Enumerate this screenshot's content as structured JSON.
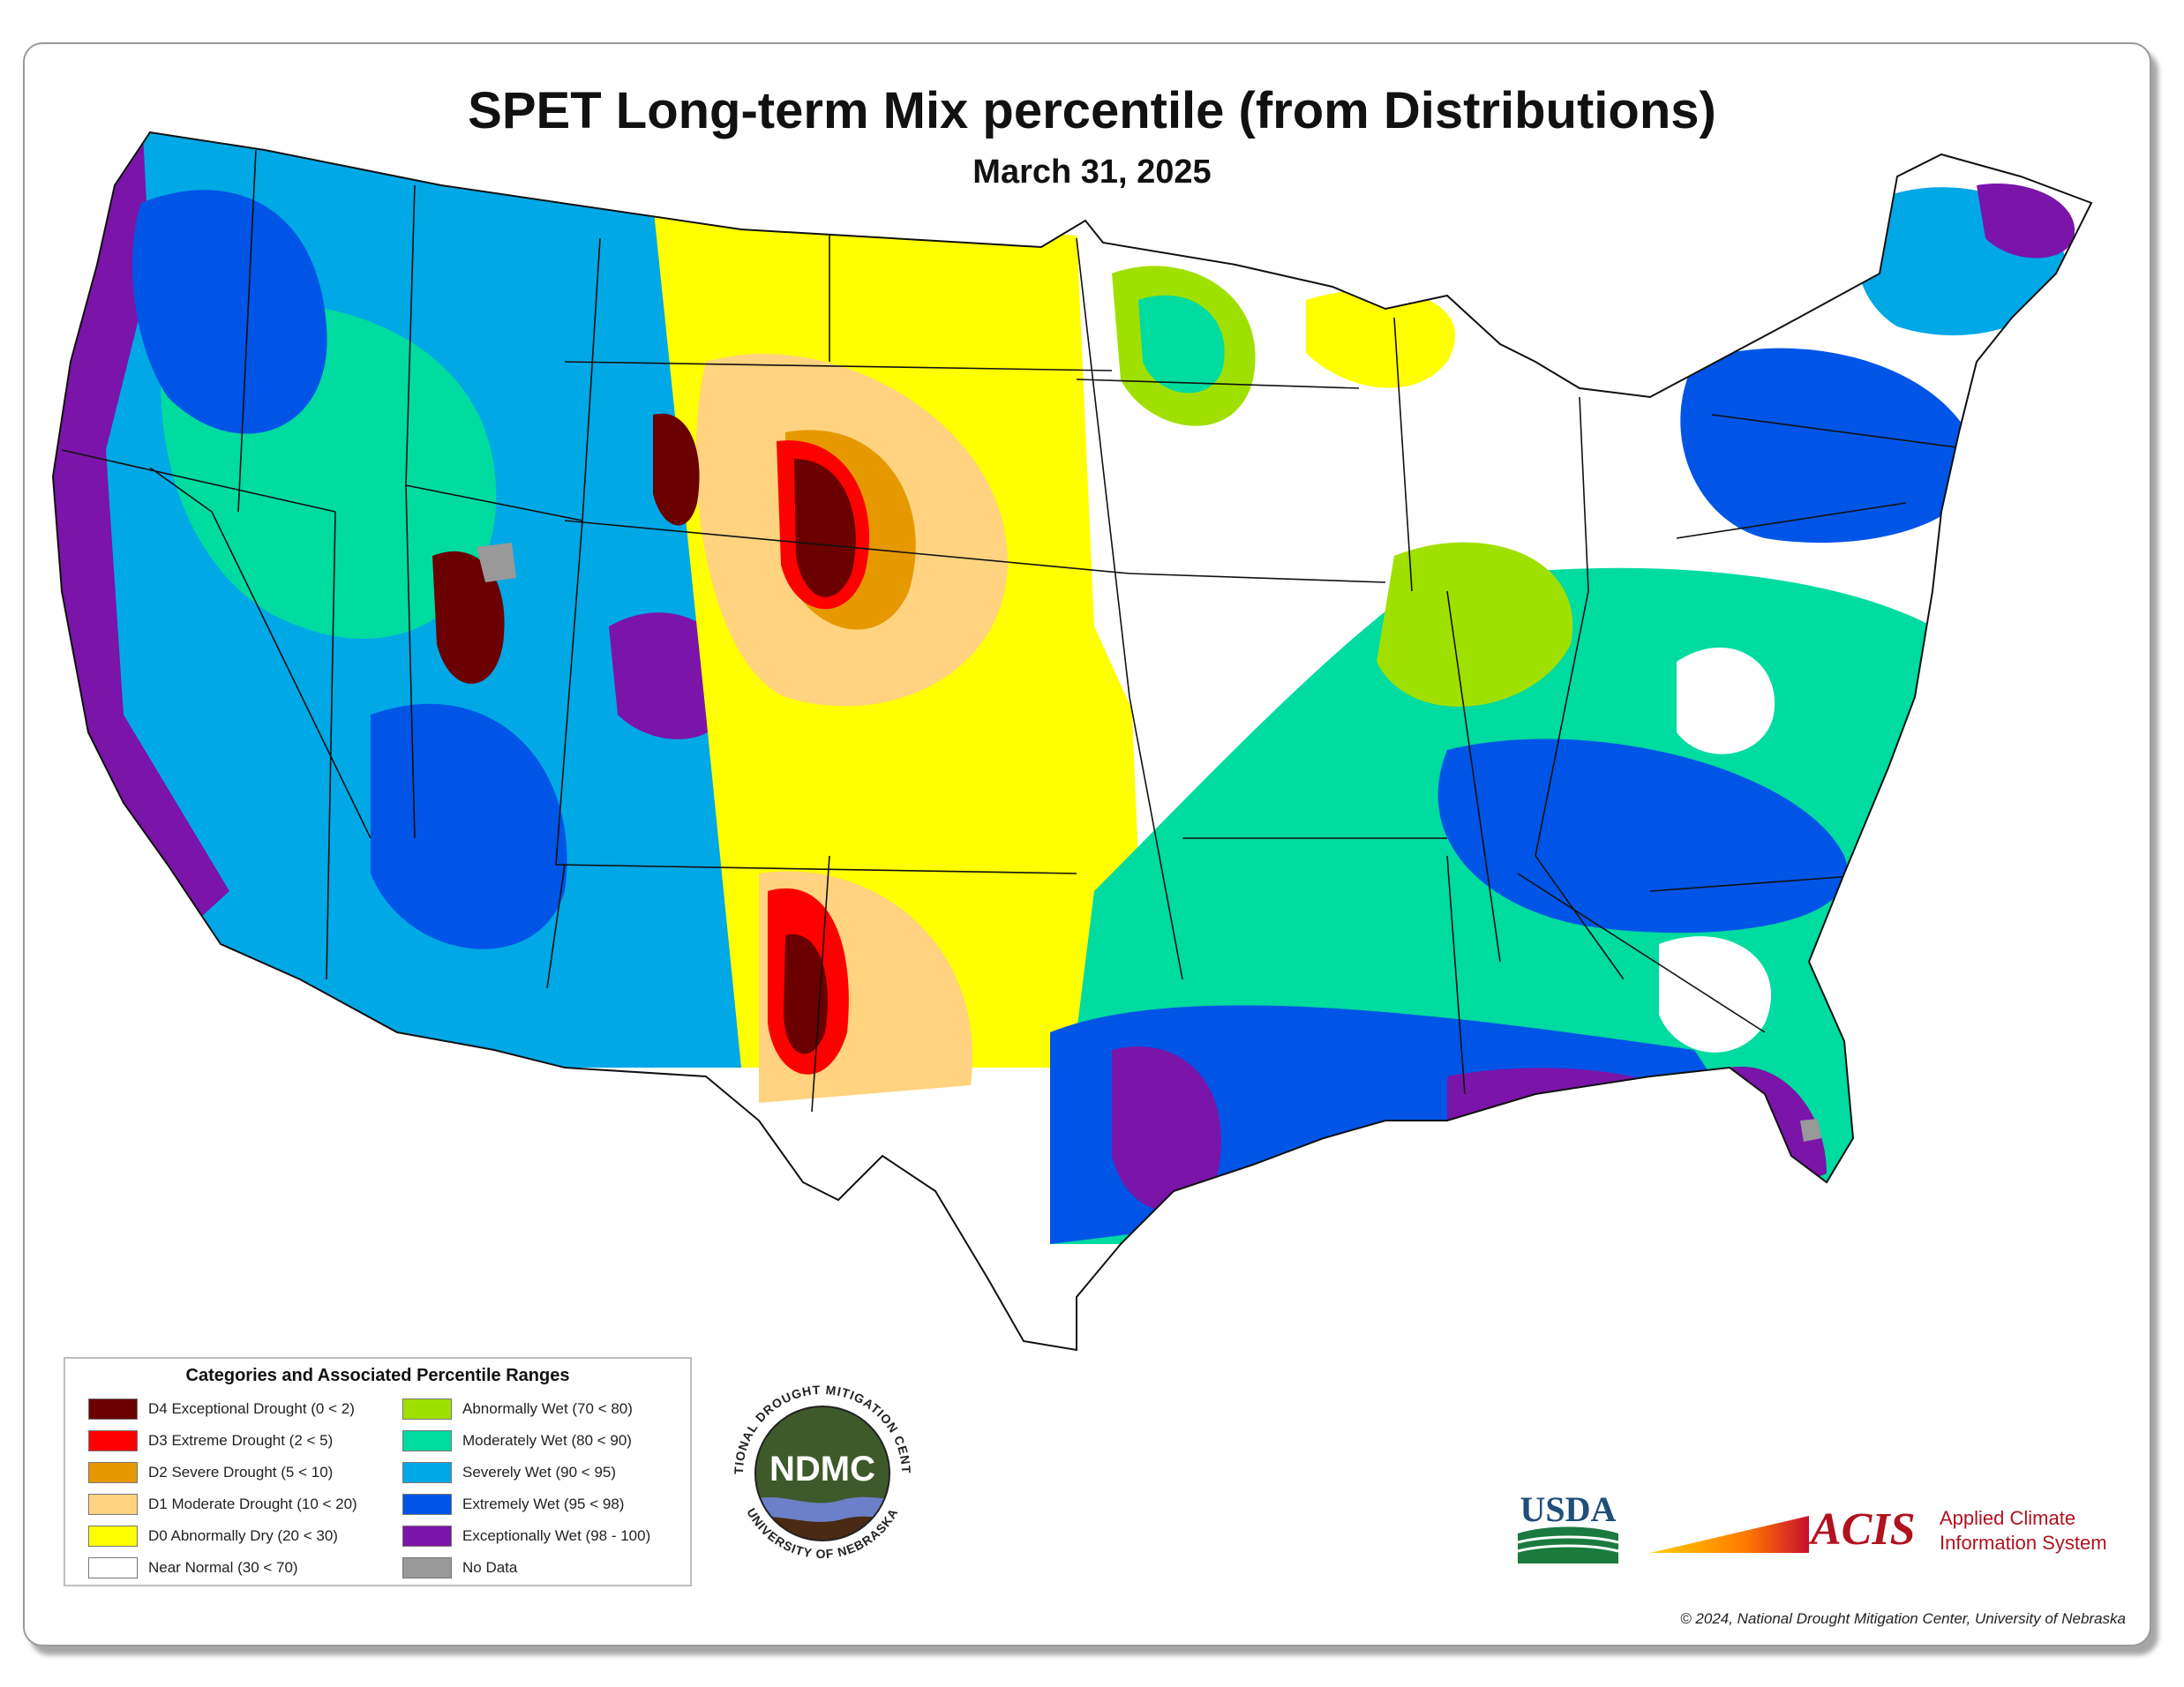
{
  "title": "SPET Long-term Mix percentile (from Distributions)",
  "subtitle": "March 31, 2025",
  "legend": {
    "title": "Categories and Associated Percentile Ranges",
    "left": [
      {
        "label": "D4 Exceptional Drought (0 < 2)",
        "color": "#6b0000"
      },
      {
        "label": "D3 Extreme Drought (2 < 5)",
        "color": "#ff0000"
      },
      {
        "label": "D2 Severe Drought (5 < 10)",
        "color": "#e69800"
      },
      {
        "label": "D1 Moderate Drought (10 < 20)",
        "color": "#ffd37f"
      },
      {
        "label": "D0 Abnormally Dry (20 < 30)",
        "color": "#ffff00"
      },
      {
        "label": "Near Normal (30 < 70)",
        "color": "#ffffff"
      }
    ],
    "right": [
      {
        "label": "Abnormally Wet (70 < 80)",
        "color": "#a0e000"
      },
      {
        "label": "Moderately Wet (80 < 90)",
        "color": "#00dba0"
      },
      {
        "label": "Severely Wet (90 < 95)",
        "color": "#00a8e6"
      },
      {
        "label": "Extremely Wet (95 < 98)",
        "color": "#0055e6"
      },
      {
        "label": "Exceptionally Wet (98 - 100)",
        "color": "#7b14a8"
      },
      {
        "label": "No Data",
        "color": "#999999"
      }
    ]
  },
  "ndmc": {
    "acronym": "NDMC",
    "ring_top": "NATIONAL DROUGHT MITIGATION CENTER",
    "ring_bottom": "UNIVERSITY OF NEBRASKA"
  },
  "usda": {
    "label": "USDA"
  },
  "acis": {
    "acronym": "ACIS",
    "line1": "Applied Climate",
    "line2": "Information System"
  },
  "copyright": "© 2024, National Drought Mitigation Center, University of Nebraska"
}
